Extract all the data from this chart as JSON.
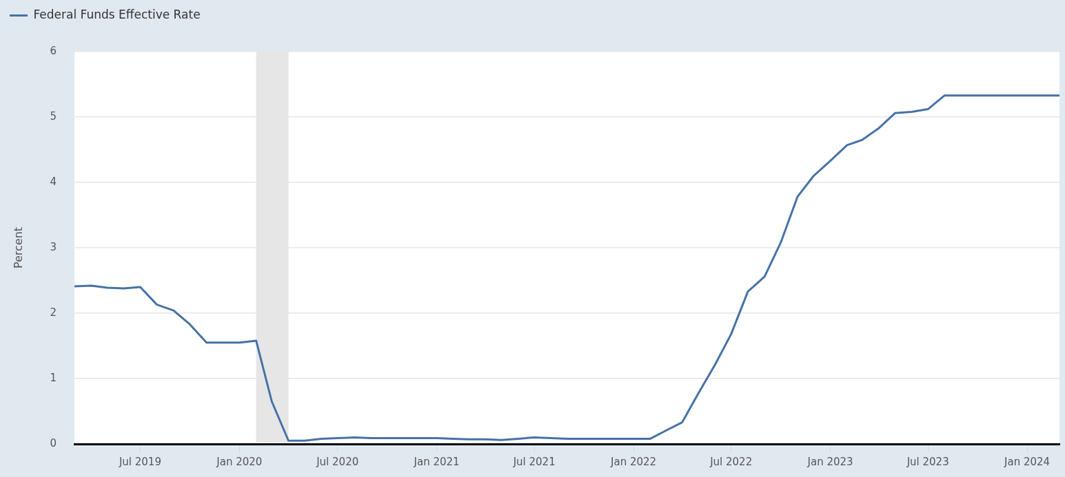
{
  "chart_data": {
    "type": "line",
    "ylabel": "Percent",
    "x": [
      "2019-03",
      "2019-04",
      "2019-05",
      "2019-06",
      "2019-07",
      "2019-08",
      "2019-09",
      "2019-10",
      "2019-11",
      "2019-12",
      "2020-01",
      "2020-02",
      "2020-03",
      "2020-04",
      "2020-05",
      "2020-06",
      "2020-07",
      "2020-08",
      "2020-09",
      "2020-10",
      "2020-11",
      "2020-12",
      "2021-01",
      "2021-02",
      "2021-03",
      "2021-04",
      "2021-05",
      "2021-06",
      "2021-07",
      "2021-08",
      "2021-09",
      "2021-10",
      "2021-11",
      "2021-12",
      "2022-01",
      "2022-02",
      "2022-03",
      "2022-04",
      "2022-05",
      "2022-06",
      "2022-07",
      "2022-08",
      "2022-09",
      "2022-10",
      "2022-11",
      "2022-12",
      "2023-01",
      "2023-02",
      "2023-03",
      "2023-04",
      "2023-05",
      "2023-06",
      "2023-07",
      "2023-08",
      "2023-09",
      "2023-10",
      "2023-11",
      "2023-12",
      "2024-01",
      "2024-02",
      "2024-03"
    ],
    "series": [
      {
        "name": "Federal Funds Effective Rate",
        "color": "#4572a7",
        "values": [
          2.41,
          2.42,
          2.39,
          2.38,
          2.4,
          2.13,
          2.04,
          1.83,
          1.55,
          1.55,
          1.55,
          1.58,
          0.65,
          0.05,
          0.05,
          0.08,
          0.09,
          0.1,
          0.09,
          0.09,
          0.09,
          0.09,
          0.09,
          0.08,
          0.07,
          0.07,
          0.06,
          0.08,
          0.1,
          0.09,
          0.08,
          0.08,
          0.08,
          0.08,
          0.08,
          0.08,
          0.2,
          0.33,
          0.77,
          1.21,
          1.68,
          2.33,
          2.56,
          3.08,
          3.78,
          4.1,
          4.33,
          4.57,
          4.65,
          4.83,
          5.06,
          5.08,
          5.12,
          5.33,
          5.33,
          5.33,
          5.33,
          5.33,
          5.33,
          5.33,
          5.33
        ]
      }
    ],
    "xlim": [
      "2019-03",
      "2024-03"
    ],
    "xticks": [
      {
        "value": "2019-07",
        "label": "Jul 2019"
      },
      {
        "value": "2020-01",
        "label": "Jan 2020"
      },
      {
        "value": "2020-07",
        "label": "Jul 2020"
      },
      {
        "value": "2021-01",
        "label": "Jan 2021"
      },
      {
        "value": "2021-07",
        "label": "Jul 2021"
      },
      {
        "value": "2022-01",
        "label": "Jan 2022"
      },
      {
        "value": "2022-07",
        "label": "Jul 2022"
      },
      {
        "value": "2023-01",
        "label": "Jan 2023"
      },
      {
        "value": "2023-07",
        "label": "Jul 2023"
      },
      {
        "value": "2024-01",
        "label": "Jan 2024"
      }
    ],
    "ylim": [
      0,
      6
    ],
    "yticks": [
      0,
      1,
      2,
      3,
      4,
      5,
      6
    ],
    "grid": "y",
    "legend": "top left",
    "marker": "none",
    "line_style": "solid",
    "bands": [
      {
        "axis": "x",
        "from": "2020-02",
        "to": "2020-04",
        "color": "#e6e6e6"
      }
    ]
  }
}
